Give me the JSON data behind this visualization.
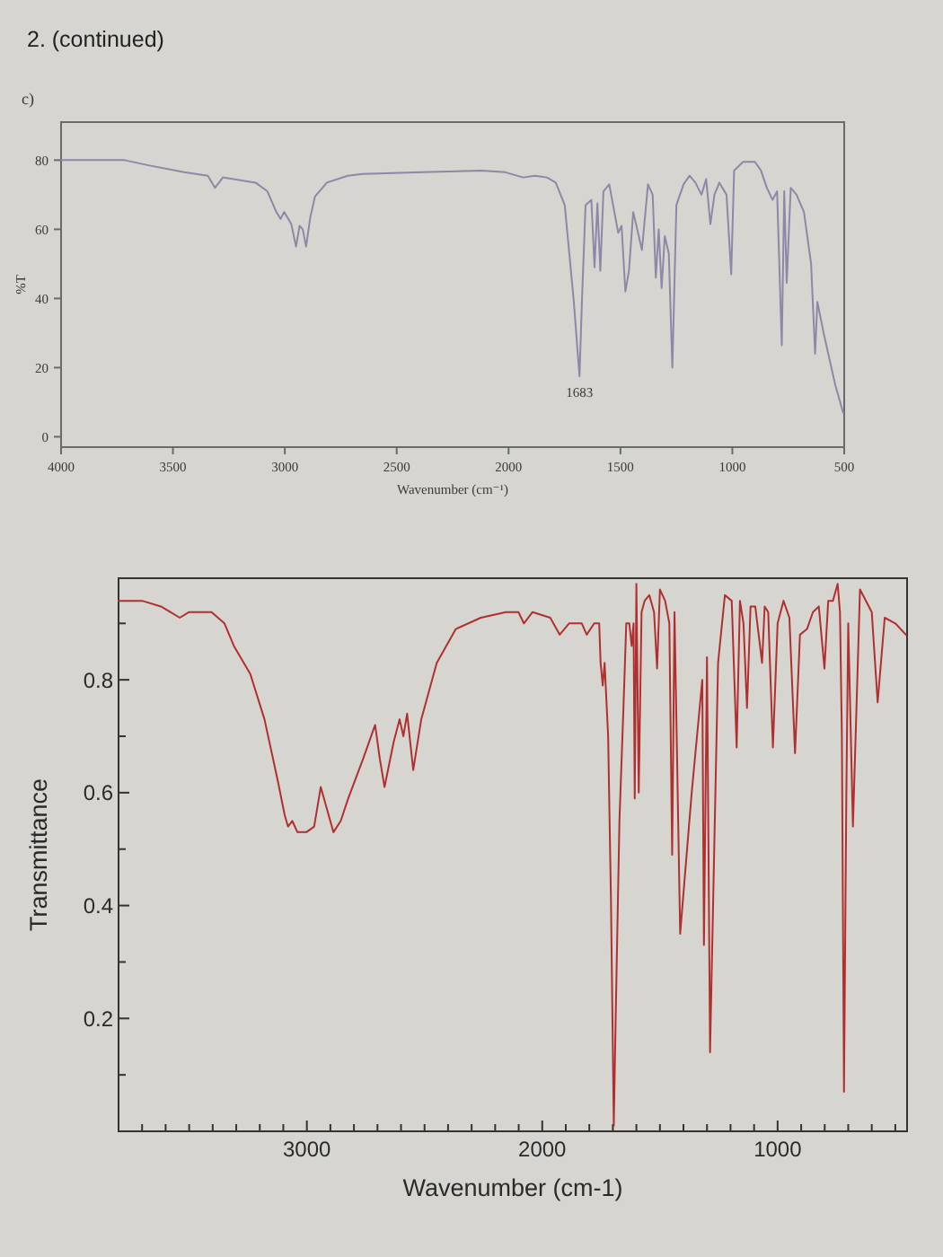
{
  "chart_data": [
    {
      "type": "line",
      "title": "2. (continued)",
      "subtitle": "c)",
      "xlabel": "Wavenumber (cm⁻¹)",
      "ylabel": "%T",
      "x": [
        4000,
        3822,
        3716,
        3609,
        3450,
        3344,
        3312,
        3277,
        3131,
        3078,
        3038,
        3019,
        3003,
        2971,
        2950,
        2934,
        2920,
        2905,
        2886,
        2865,
        2812,
        2719,
        2653,
        2387,
        2121,
        2015,
        1935,
        1882,
        1829,
        1789,
        1749,
        1709,
        1683,
        1672,
        1656,
        1630,
        1616,
        1603,
        1590,
        1576,
        1550,
        1523,
        1510,
        1495,
        1478,
        1462,
        1443,
        1425,
        1404,
        1377,
        1356,
        1342,
        1329,
        1316,
        1302,
        1284,
        1268,
        1250,
        1218,
        1191,
        1165,
        1138,
        1117,
        1098,
        1080,
        1058,
        1026,
        1005,
        992,
        952,
        899,
        872,
        846,
        820,
        800,
        779,
        768,
        757,
        739,
        713,
        680,
        648,
        630,
        620,
        592,
        540,
        505
      ],
      "values": [
        80,
        80,
        80,
        78.5,
        76.5,
        75.5,
        72,
        75,
        73.5,
        71,
        65,
        63,
        65,
        61.5,
        55,
        61,
        60,
        55,
        63.5,
        69.5,
        73.5,
        75.5,
        76,
        76.5,
        77,
        76.5,
        75,
        75.5,
        75,
        73.5,
        67,
        39.5,
        17.5,
        39.5,
        67,
        68.5,
        49,
        67.5,
        48,
        71,
        73,
        63.5,
        59,
        61,
        42,
        48,
        65,
        60,
        54,
        73,
        70,
        46,
        60,
        43,
        58,
        53,
        20,
        67,
        73,
        75.5,
        73.5,
        70,
        74.5,
        61.5,
        70,
        73.5,
        70,
        47,
        77,
        79.5,
        79.5,
        77,
        72,
        68.5,
        71,
        26.5,
        71,
        44.5,
        72,
        70,
        65,
        50,
        24,
        39,
        30,
        15,
        7
      ],
      "color": "#8f87a8",
      "xlim": [
        4000,
        500
      ],
      "ylim": [
        -3,
        91
      ],
      "xticks": [
        4000,
        3500,
        3000,
        2500,
        2000,
        1500,
        1000,
        500
      ],
      "yticks": [
        0,
        20,
        40,
        60,
        80
      ],
      "annotations": [
        {
          "text": "1683",
          "x": 1683,
          "y": 17.5
        }
      ]
    },
    {
      "type": "line",
      "xlabel": "Wavenumber (cm-1)",
      "ylabel": "Transmittance",
      "x": [
        3800,
        3700,
        3620,
        3580,
        3540,
        3500,
        3405,
        3350,
        3310,
        3240,
        3180,
        3123,
        3094,
        3080,
        3062,
        3040,
        3002,
        2969,
        2941,
        2914,
        2887,
        2856,
        2824,
        2761,
        2710,
        2690,
        2670,
        2631,
        2606,
        2590,
        2574,
        2548,
        2514,
        2448,
        2367,
        2261,
        2154,
        2101,
        2078,
        2041,
        1966,
        1926,
        1886,
        1832,
        1811,
        1779,
        1758,
        1752,
        1743,
        1735,
        1720,
        1708,
        1696,
        1688,
        1672,
        1655,
        1643,
        1630,
        1620,
        1612,
        1607,
        1600,
        1590,
        1578,
        1565,
        1545,
        1525,
        1512,
        1500,
        1478,
        1460,
        1448,
        1438,
        1414,
        1365,
        1320,
        1313,
        1300,
        1287,
        1253,
        1224,
        1195,
        1174,
        1160,
        1145,
        1130,
        1115,
        1095,
        1066,
        1055,
        1040,
        1020,
        1000,
        975,
        950,
        926,
        905,
        875,
        850,
        825,
        801,
        785,
        765,
        745,
        735,
        727,
        718,
        708,
        700,
        680,
        650,
        600,
        575,
        545,
        500,
        455
      ],
      "values": [
        0.94,
        0.94,
        0.93,
        0.92,
        0.91,
        0.92,
        0.92,
        0.9,
        0.86,
        0.81,
        0.73,
        0.62,
        0.56,
        0.54,
        0.55,
        0.53,
        0.53,
        0.54,
        0.61,
        0.57,
        0.53,
        0.55,
        0.59,
        0.66,
        0.72,
        0.66,
        0.61,
        0.69,
        0.73,
        0.7,
        0.74,
        0.64,
        0.73,
        0.83,
        0.89,
        0.91,
        0.92,
        0.92,
        0.9,
        0.92,
        0.91,
        0.88,
        0.9,
        0.9,
        0.88,
        0.9,
        0.9,
        0.83,
        0.79,
        0.83,
        0.7,
        0.41,
        0.01,
        0.2,
        0.55,
        0.75,
        0.9,
        0.9,
        0.86,
        0.9,
        0.59,
        0.97,
        0.6,
        0.92,
        0.94,
        0.95,
        0.92,
        0.82,
        0.96,
        0.94,
        0.9,
        0.49,
        0.92,
        0.35,
        0.6,
        0.8,
        0.33,
        0.84,
        0.14,
        0.83,
        0.95,
        0.94,
        0.68,
        0.94,
        0.9,
        0.75,
        0.93,
        0.93,
        0.83,
        0.93,
        0.92,
        0.68,
        0.9,
        0.94,
        0.91,
        0.67,
        0.88,
        0.89,
        0.92,
        0.93,
        0.82,
        0.94,
        0.94,
        0.97,
        0.92,
        0.7,
        0.07,
        0.6,
        0.9,
        0.54,
        0.96,
        0.92,
        0.76,
        0.91,
        0.9,
        0.88
      ],
      "color": "#b0302f",
      "xlim": [
        3800,
        450
      ],
      "ylim": [
        0,
        0.98
      ],
      "xticks": [
        {
          "value": 3700,
          "label": null
        },
        {
          "value": 3600,
          "label": null
        },
        {
          "value": 3500,
          "label": null
        },
        {
          "value": 3400,
          "label": null
        },
        {
          "value": 3300,
          "label": null
        },
        {
          "value": 3200,
          "label": null
        },
        {
          "value": 3100,
          "label": null
        },
        3000,
        {
          "value": 2900,
          "label": null
        },
        {
          "value": 2800,
          "label": null
        },
        {
          "value": 2700,
          "label": null
        },
        {
          "value": 2600,
          "label": null
        },
        {
          "value": 2500,
          "label": null
        },
        {
          "value": 2400,
          "label": null
        },
        {
          "value": 2300,
          "label": null
        },
        {
          "value": 2200,
          "label": null
        },
        {
          "value": 2100,
          "label": null
        },
        2000,
        {
          "value": 1900,
          "label": null
        },
        {
          "value": 1800,
          "label": null
        },
        {
          "value": 1700,
          "label": null
        },
        {
          "value": 1600,
          "label": null
        },
        {
          "value": 1500,
          "label": null
        },
        {
          "value": 1400,
          "label": null
        },
        {
          "value": 1300,
          "label": null
        },
        {
          "value": 1200,
          "label": null
        },
        {
          "value": 1100,
          "label": null
        },
        1000,
        {
          "value": 900,
          "label": null
        },
        {
          "value": 800,
          "label": null
        },
        {
          "value": 700,
          "label": null
        },
        {
          "value": 600,
          "label": null
        },
        {
          "value": 500,
          "label": null
        }
      ],
      "yticks": [
        {
          "value": 0.1,
          "label": null
        },
        0.2,
        {
          "value": 0.3,
          "label": null
        },
        0.4,
        {
          "value": 0.5,
          "label": null
        },
        0.6,
        {
          "value": 0.7,
          "label": null
        },
        0.8,
        {
          "value": 0.9,
          "label": null
        }
      ]
    }
  ]
}
